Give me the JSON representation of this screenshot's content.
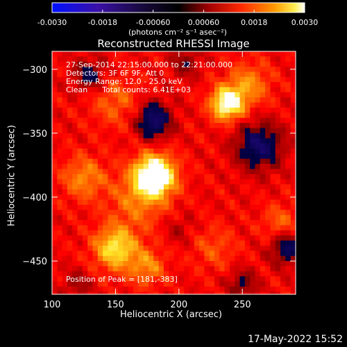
{
  "window": {
    "timestamp": "17-May-2022 15:52"
  },
  "colorbar": {
    "ticks": [
      "-0.0030",
      "-0.0018",
      "-0.00060",
      "0.00060",
      "0.0018",
      "0.0030"
    ],
    "tick_values": [
      -0.003,
      -0.0018,
      -0.0006,
      0.0006,
      0.0018,
      0.003
    ],
    "units_label": "(photons cm⁻² s⁻¹ asec⁻²)",
    "range": [
      -0.003,
      0.003
    ],
    "colors": [
      "#0000ff",
      "#000000",
      "#cc0000",
      "#ff8c00",
      "#ffffff"
    ]
  },
  "annotations": {
    "time_range": "27-Sep-2014 22:15:00.000 to 22:21:00.000",
    "detectors": "Detectors: 3F 6F 9F, Att 0",
    "energy_range": "Energy Range: 12.0 - 25.0 keV",
    "clean_counts": "Clean      Total counts: 6.41E+03",
    "peak_position": "Position of Peak = [181,-383]"
  },
  "chart_data": {
    "type": "heatmap",
    "title": "Reconstructed RHESSI Image",
    "xlabel": "Heliocentric X (arcsec)",
    "ylabel": "Heliocentric Y (arcsec)",
    "xlim": [
      100,
      292
    ],
    "ylim": [
      -476,
      -286
    ],
    "xticks": [
      100,
      150,
      200,
      250
    ],
    "yticks": [
      -300,
      -350,
      -400,
      -450
    ],
    "xtick_labels": [
      "100",
      "150",
      "200",
      "250"
    ],
    "ytick_labels": [
      "−300",
      "−350",
      "−400",
      "−450"
    ],
    "grid": false,
    "peak": [
      181,
      -383
    ],
    "sources": [
      {
        "x": 181,
        "y": -383,
        "amp": 1.0,
        "sigma": 11
      },
      {
        "x": 168,
        "y": -402,
        "amp": 0.3,
        "sigma": 16
      },
      {
        "x": 238,
        "y": -327,
        "amp": 0.8,
        "sigma": 9
      },
      {
        "x": 255,
        "y": -312,
        "amp": 0.35,
        "sigma": 12
      },
      {
        "x": 150,
        "y": -440,
        "amp": 0.6,
        "sigma": 12
      },
      {
        "x": 175,
        "y": -455,
        "amp": 0.35,
        "sigma": 10
      },
      {
        "x": 125,
        "y": -385,
        "amp": 0.35,
        "sigma": 12
      },
      {
        "x": 150,
        "y": -325,
        "amp": 0.25,
        "sigma": 14
      },
      {
        "x": 228,
        "y": -440,
        "amp": 0.2,
        "sigma": 12
      },
      {
        "x": 280,
        "y": -420,
        "amp": 0.25,
        "sigma": 10
      },
      {
        "x": 180,
        "y": -340,
        "amp": -0.55,
        "sigma": 10
      },
      {
        "x": 130,
        "y": -305,
        "amp": -0.35,
        "sigma": 9
      },
      {
        "x": 205,
        "y": -295,
        "amp": -0.25,
        "sigma": 8
      },
      {
        "x": 263,
        "y": -360,
        "amp": -0.5,
        "sigma": 13
      },
      {
        "x": 285,
        "y": -440,
        "amp": -0.45,
        "sigma": 9
      },
      {
        "x": 250,
        "y": -468,
        "amp": -0.3,
        "sigma": 8
      },
      {
        "x": 120,
        "y": -468,
        "amp": -0.2,
        "sigma": 8
      },
      {
        "x": 200,
        "y": -425,
        "amp": -0.15,
        "sigma": 8
      }
    ]
  }
}
